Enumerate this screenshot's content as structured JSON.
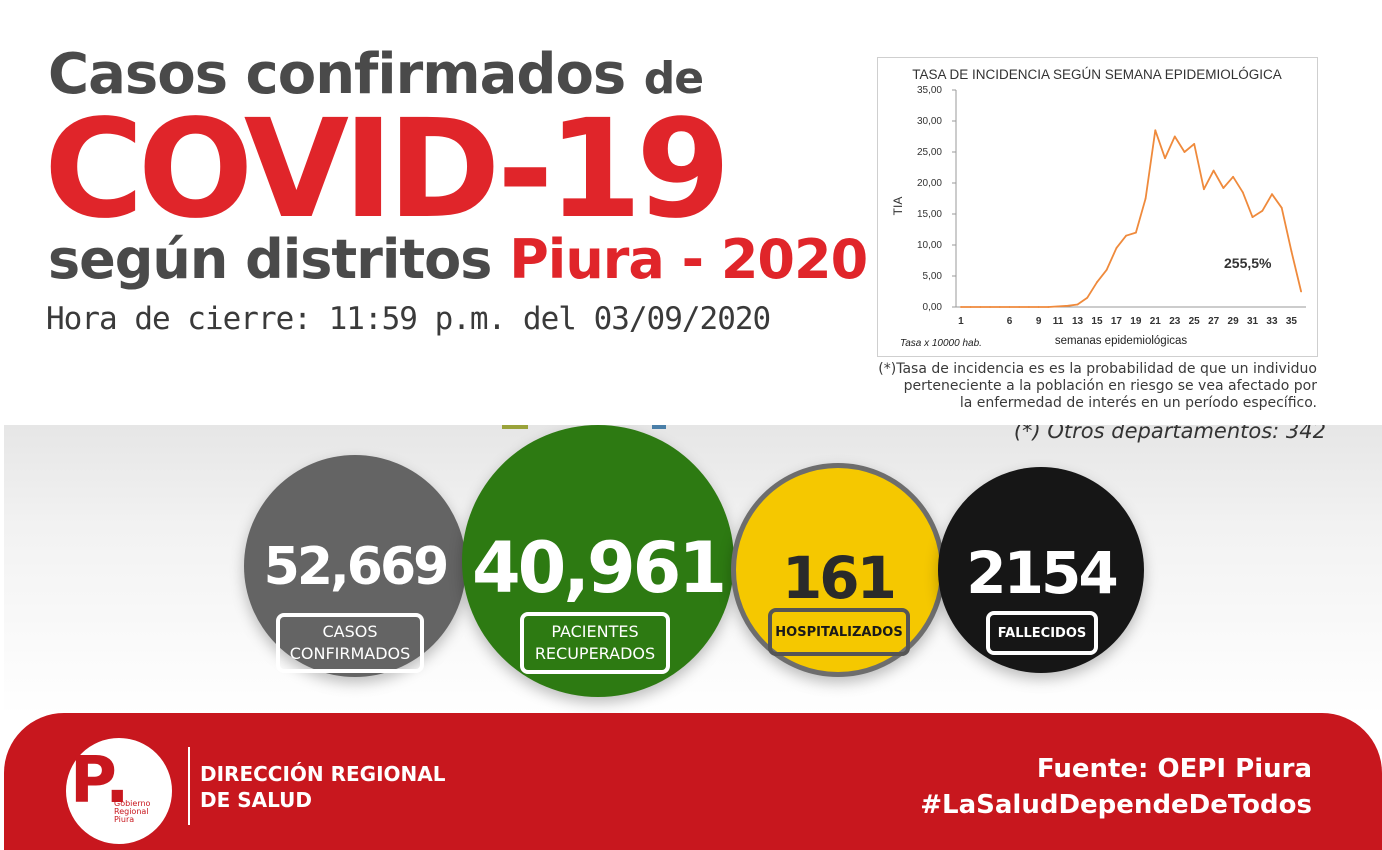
{
  "header": {
    "title_line1": "Casos confirmados",
    "title_line1_de": "de",
    "title_main": "COVID-19",
    "title_line3_gray": "según distritos",
    "title_line3_red": "Piura - 2020",
    "closing_time": "Hora de cierre: 11:59 p.m. del 03/09/2020"
  },
  "colors": {
    "red": "#e0252a",
    "gray_text": "#4a4a4a",
    "confirmed": "#646464",
    "recovered": "#2d7a12",
    "hospitalized": "#f5c800",
    "deaths": "#161616",
    "footer": "#c8171e",
    "line": "#ef8a3c"
  },
  "chart_data": {
    "type": "line",
    "title": "TASA DE INCIDENCIA SEGÚN SEMANA EPIDEMIOLÓGICA",
    "ylabel": "TIA",
    "xlabel": "semanas epidemiológicas",
    "note": "Tasa x 10000 hab.",
    "annotation": "255,5%",
    "ylim": [
      0,
      35
    ],
    "y_ticks": [
      "0,00",
      "5,00",
      "10,00",
      "15,00",
      "20,00",
      "25,00",
      "30,00",
      "35,00"
    ],
    "x_ticks": [
      "1",
      "6",
      "9",
      "11",
      "13",
      "15",
      "17",
      "19",
      "21",
      "23",
      "25",
      "27",
      "29",
      "31",
      "33",
      "35"
    ],
    "series": [
      {
        "x": [
          1,
          2,
          3,
          4,
          5,
          6,
          7,
          8,
          9,
          10,
          11,
          12,
          13,
          14,
          15,
          16,
          17,
          18,
          19,
          20,
          21,
          22,
          23,
          24,
          25,
          26,
          27,
          28,
          29,
          30,
          31,
          32,
          33,
          34,
          35,
          36
        ],
        "values": [
          0.0,
          0.0,
          0.0,
          0.0,
          0.0,
          0.0,
          0.0,
          0.0,
          0.0,
          0.0,
          0.1,
          0.2,
          0.4,
          1.5,
          4.0,
          6.0,
          9.5,
          11.5,
          12.0,
          17.5,
          28.5,
          24.0,
          27.5,
          25.0,
          26.3,
          19.0,
          22.0,
          19.2,
          21.0,
          18.5,
          14.5,
          15.5,
          18.2,
          16.0,
          9.0,
          2.5
        ]
      }
    ]
  },
  "chart_footnote": [
    "(*)Tasa de incidencia es es la probabilidad de que un individuo",
    "perteneciente a la población en riesgo se vea afectado por",
    "la enfermedad de interés en un período específico."
  ],
  "otros": "(*) Otros departamentos: 342",
  "stats": {
    "confirmed": {
      "value": "52,669",
      "label_1": "CASOS",
      "label_2": "CONFIRMADOS"
    },
    "recovered": {
      "value": "40,961",
      "label_1": "PACIENTES",
      "label_2": "RECUPERADOS"
    },
    "hospitalized": {
      "value": "161",
      "label": "HOSPITALIZADOS"
    },
    "deaths": {
      "value": "2154",
      "label": "FALLECIDOS"
    }
  },
  "footer": {
    "logo_letter": "P.",
    "logo_text": [
      "Gobierno",
      "Regional",
      "Piura"
    ],
    "org_line1": "DIRECCIÓN REGIONAL",
    "org_line2": "DE SALUD",
    "source": "Fuente: OEPI Piura",
    "hashtag": "#LaSaludDependeDeTodos"
  }
}
